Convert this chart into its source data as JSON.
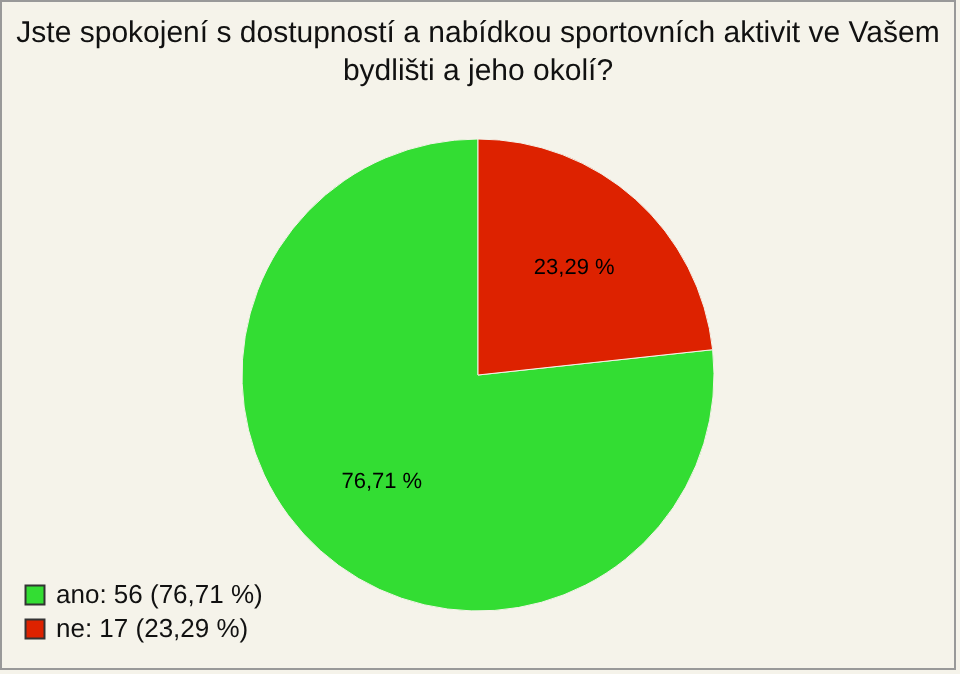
{
  "chart_data": {
    "type": "pie",
    "title": "Jste spokojení s dostupností a nabídkou sportovních aktivit ve Vašem bydlišti a jeho okolí?",
    "categories": [
      "ano: 56 (76,71 %)",
      "ne: 17 (23,29 %)"
    ],
    "values": [
      76.71,
      23.29
    ],
    "colors": [
      "#33dd33",
      "#dd2200"
    ],
    "value_labels": [
      "76,71 %",
      "23,29 %"
    ],
    "legend": "bottom left"
  }
}
